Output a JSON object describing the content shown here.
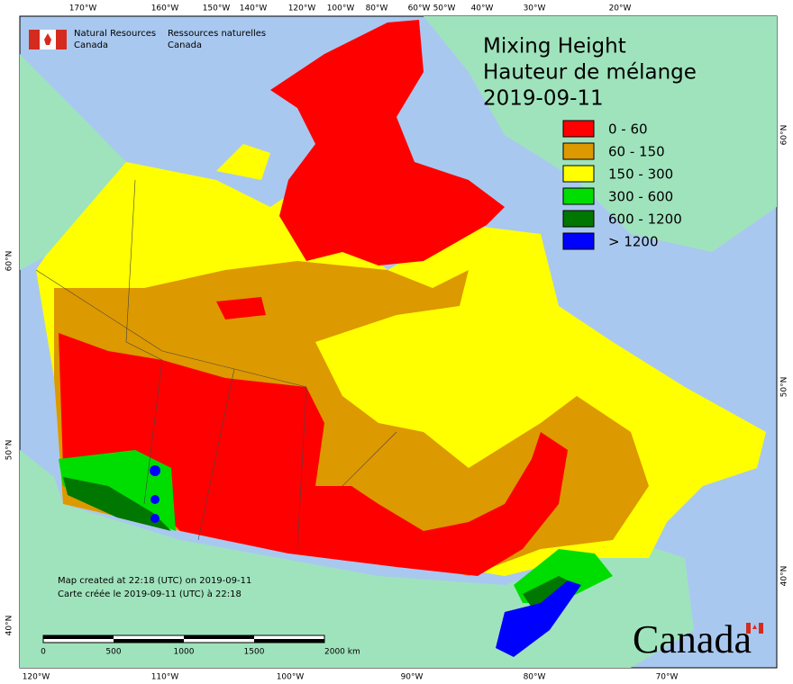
{
  "agency": {
    "english": "Natural Resources\nCanada",
    "french": "Ressources naturelles\nCanada"
  },
  "title": [
    "Mixing Height",
    "Hauteur de mélange",
    "2019-09-11"
  ],
  "legend": [
    {
      "label": "0 - 60",
      "color": "#ff0000"
    },
    {
      "label": "60 - 150",
      "color": "#dd9900"
    },
    {
      "label": "150 - 300",
      "color": "#ffff00"
    },
    {
      "label": "300 - 600",
      "color": "#00dd00"
    },
    {
      "label": "600 - 1200",
      "color": "#007700"
    },
    {
      "label": "> 1200",
      "color": "#0000ff"
    }
  ],
  "graticule": {
    "top": [
      "170°W",
      "160°W",
      "150°W",
      "140°W",
      "120°W",
      "100°W",
      "80°W",
      "60°W",
      "50°W",
      "40°W",
      "30°W",
      "20°W"
    ],
    "bottom": [
      "120°W",
      "110°W",
      "100°W",
      "90°W",
      "80°W",
      "70°W"
    ],
    "left": [
      "60°N",
      "50°N",
      "40°N"
    ],
    "right": [
      "60°N",
      "50°N",
      "40°N"
    ]
  },
  "notes": [
    "Map created at 22:18 (UTC) on 2019-09-11",
    "Carte créée le 2019-09-11 (UTC) à 22:18"
  ],
  "scale_bar": [
    "0",
    "500",
    "1000",
    "1500",
    "2000 km"
  ],
  "wordmark": "Canada"
}
